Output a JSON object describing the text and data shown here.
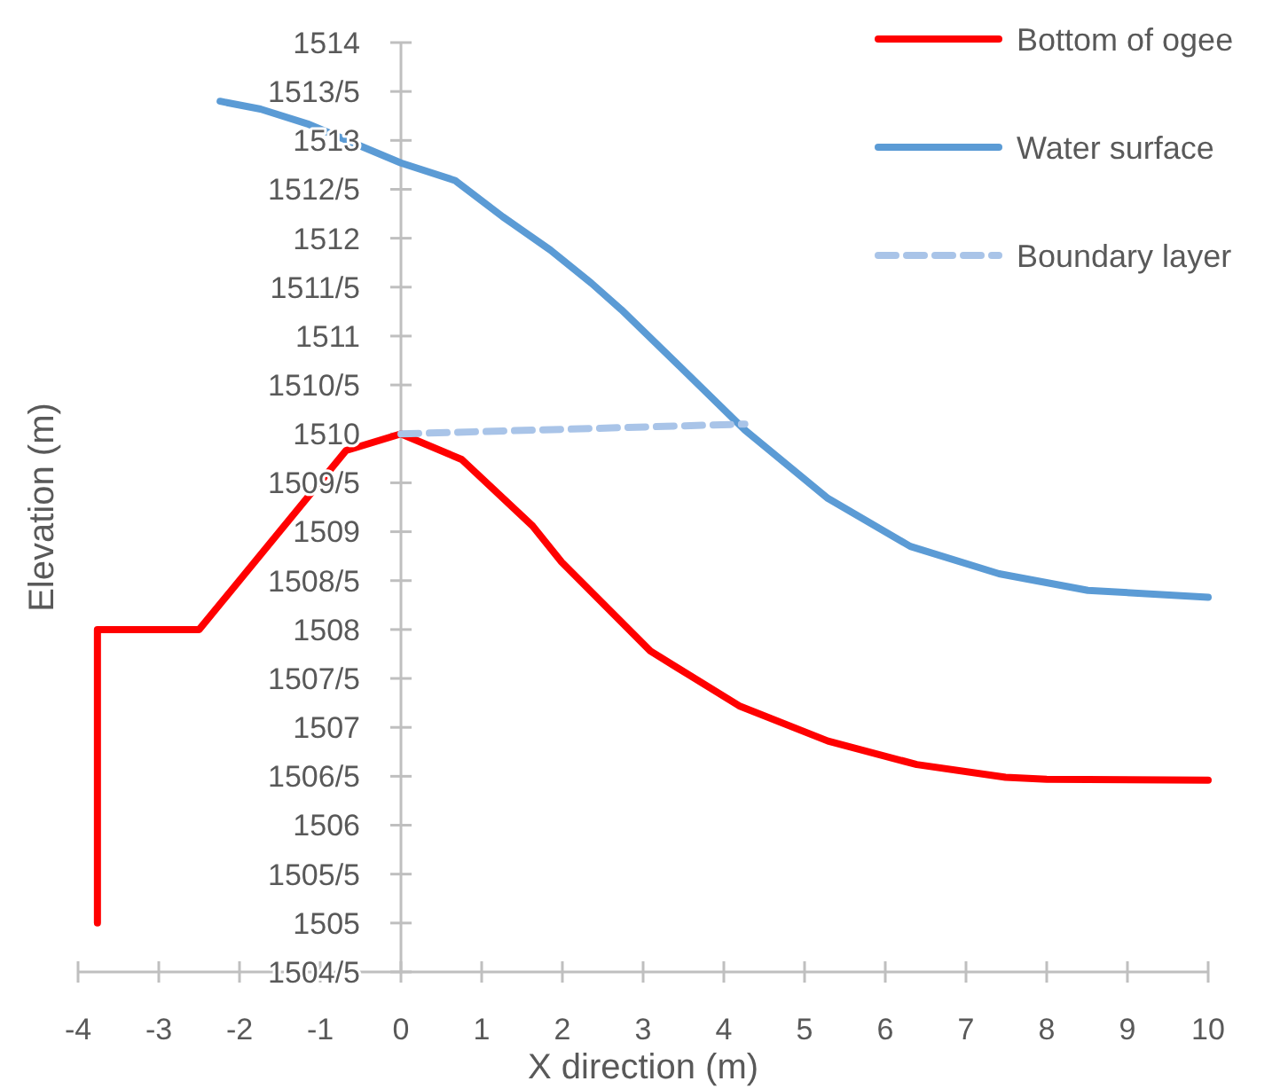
{
  "chart_data": {
    "type": "line",
    "xlabel": "X direction (m)",
    "ylabel": "Elevation (m)",
    "xlim": [
      -4,
      10
    ],
    "xticks": [
      -4,
      -3,
      -2,
      -1,
      0,
      1,
      2,
      3,
      4,
      5,
      6,
      7,
      8,
      9,
      10
    ],
    "ylim": [
      1504.5,
      1514
    ],
    "yticks": [
      {
        "value": 1504.5,
        "label": "1504/5"
      },
      1505,
      {
        "value": 1505.5,
        "label": "1505/5"
      },
      1506,
      {
        "value": 1506.5,
        "label": "1506/5"
      },
      1507,
      {
        "value": 1507.5,
        "label": "1507/5"
      },
      1508,
      {
        "value": 1508.5,
        "label": "1508/5"
      },
      1509,
      {
        "value": 1509.5,
        "label": "1509/5"
      },
      1510,
      {
        "value": 1510.5,
        "label": "1510/5"
      },
      1511,
      {
        "value": 1511.5,
        "label": "1511/5"
      },
      1512,
      {
        "value": 1512.5,
        "label": "1512/5"
      },
      1513,
      {
        "value": 1513.5,
        "label": "1513/5"
      },
      1514
    ],
    "grid": false,
    "legend": "top right",
    "marker": "none",
    "series": [
      {
        "name": "Bottom of ogee",
        "color": "#ff0000",
        "line_style": "solid",
        "x": [
          -3.76,
          -3.76,
          -2.5,
          -0.68,
          0,
          0.75,
          1.63,
          1.99,
          3.09,
          4.19,
          5.29,
          6.39,
          7.49,
          8.0,
          10.0
        ],
        "values": [
          1505,
          1508,
          1508,
          1509.83,
          1510,
          1509.74,
          1509.06,
          1508.69,
          1507.78,
          1507.22,
          1506.86,
          1506.62,
          1506.49,
          1506.47,
          1506.46
        ]
      },
      {
        "name": "Water surface",
        "color": "#5b9bd5",
        "line_style": "solid",
        "x": [
          -2.24,
          -1.74,
          -1.16,
          0.0,
          0.67,
          1.26,
          1.85,
          2.36,
          2.73,
          3.38,
          4.26,
          5.29,
          6.31,
          7.41,
          8.51,
          10.0
        ],
        "values": [
          1513.4,
          1513.32,
          1513.17,
          1512.77,
          1512.59,
          1512.22,
          1511.88,
          1511.54,
          1511.27,
          1510.75,
          1510.04,
          1509.34,
          1508.85,
          1508.57,
          1508.4,
          1508.33
        ]
      },
      {
        "name": "Boundary layer",
        "color": "#a9c4e8",
        "line_style": "dashed",
        "x": [
          0,
          4.26
        ],
        "values": [
          1510.0,
          1510.1
        ]
      }
    ]
  }
}
